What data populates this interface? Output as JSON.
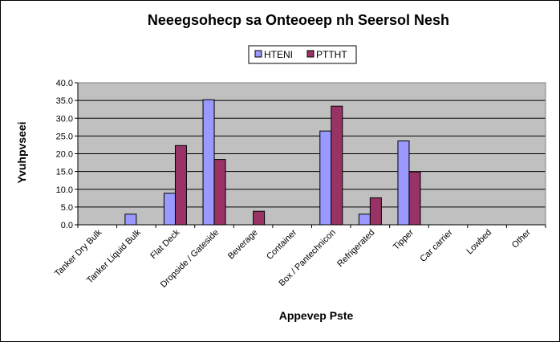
{
  "chart_data": {
    "type": "bar",
    "title": "Neeegsohecp sa Onteoeep nh Seersol Nesh",
    "xlabel": "Appevep Pste",
    "ylabel": "Yvuhpvseei",
    "ylim": [
      0,
      40
    ],
    "yticks": [
      "0.0",
      "5.0",
      "10.0",
      "15.0",
      "20.0",
      "25.0",
      "30.0",
      "35.0",
      "40.0"
    ],
    "legend_position": "top-center",
    "grid": true,
    "plot_background": "#c0c0c0",
    "categories": [
      "Tanker Dry Bulk",
      "Tanker Liquid Bulk",
      "Flat Deck",
      "Dropside / Gateside",
      "Beverage",
      "Container",
      "Box / Pantechnicon",
      "Refrigerated",
      "Tipper",
      "Car carrier",
      "Lowbed",
      "Other"
    ],
    "series": [
      {
        "name": "HTENI",
        "color": "#9999ff",
        "values": [
          0,
          3.0,
          8.9,
          35.2,
          0,
          0,
          26.4,
          3.0,
          23.6,
          0,
          0,
          0
        ]
      },
      {
        "name": "PTTHT",
        "color": "#993366",
        "values": [
          0,
          0,
          22.3,
          18.4,
          3.8,
          0,
          33.4,
          7.6,
          14.9,
          0,
          0,
          0
        ]
      }
    ]
  }
}
